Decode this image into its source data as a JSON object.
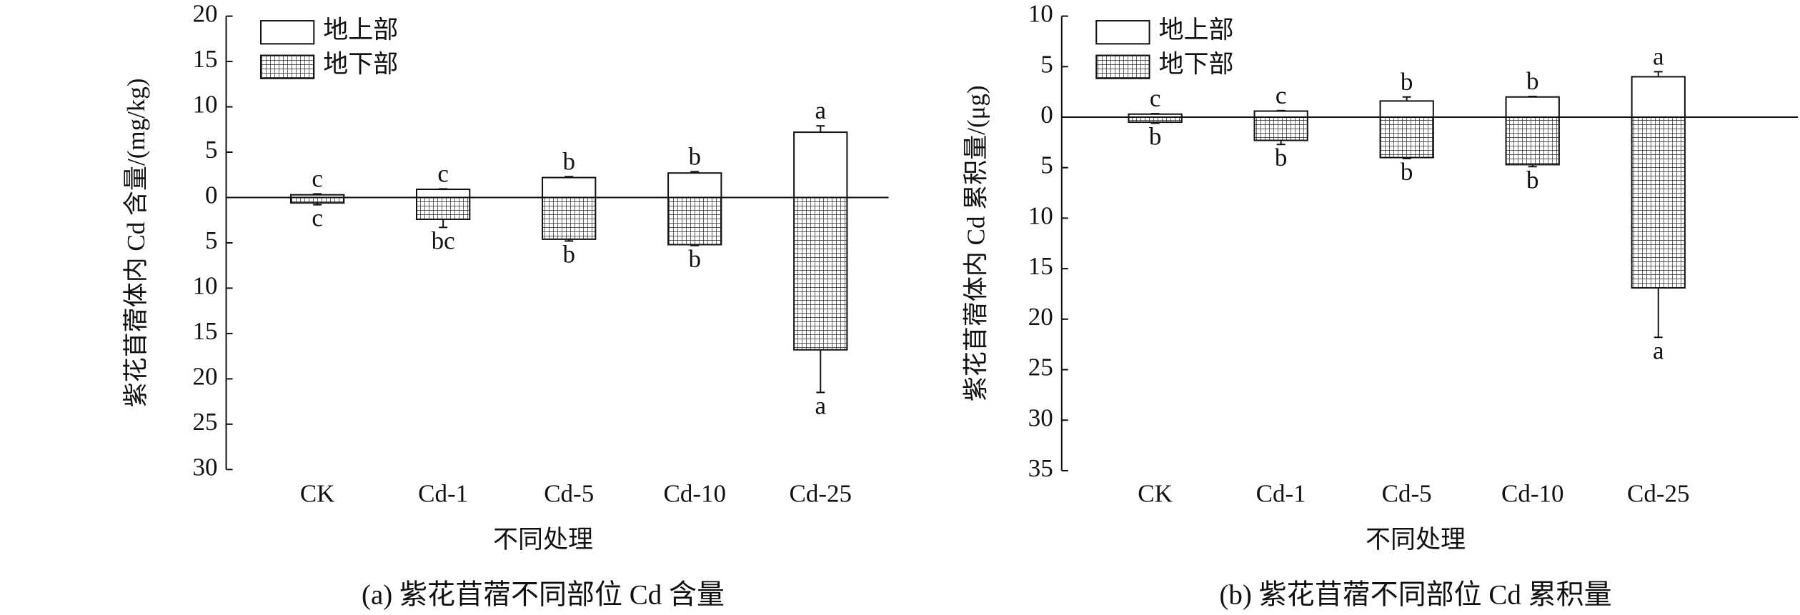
{
  "chart_data": [
    {
      "type": "bar",
      "caption": "(a) 紫花苜蓿不同部位 Cd 含量",
      "ylabel": "紫花苜蓿体内 Cd 含量/(mg/kg)",
      "xlabel": "不同处理",
      "categories": [
        "CK",
        "Cd-1",
        "Cd-5",
        "Cd-10",
        "Cd-25"
      ],
      "ylim": [
        -30,
        20
      ],
      "yticks": [
        20,
        15,
        10,
        5,
        0,
        {
          "value": -5,
          "label": "5"
        },
        {
          "value": -10,
          "label": "10"
        },
        {
          "value": -15,
          "label": "15"
        },
        {
          "value": -20,
          "label": "20"
        },
        {
          "value": -25,
          "label": "25"
        },
        {
          "value": -30,
          "label": "30"
        }
      ],
      "series": [
        {
          "name": "地上部",
          "color": "#ffffff",
          "values": [
            0.3,
            0.9,
            2.2,
            2.7,
            7.2
          ],
          "errors": [
            0.1,
            0.05,
            0.1,
            0.15,
            0.7
          ],
          "letters": [
            "c",
            "c",
            "b",
            "b",
            "a"
          ]
        },
        {
          "name": "地下部",
          "color": "#ffffff",
          "hatch": "grid",
          "values": [
            -0.6,
            -2.4,
            -4.6,
            -5.2,
            -16.8
          ],
          "errors": [
            0.2,
            0.9,
            0.2,
            0.1,
            4.7
          ],
          "letters": [
            "c",
            "bc",
            "b",
            "b",
            "a"
          ]
        }
      ]
    },
    {
      "type": "bar",
      "caption": "(b) 紫花苜蓿不同部位 Cd 累积量",
      "ylabel": "紫花苜蓿体内 Cd 累积量/(μg)",
      "xlabel": "不同处理",
      "categories": [
        "CK",
        "Cd-1",
        "Cd-5",
        "Cd-10",
        "Cd-25"
      ],
      "ylim": [
        -35,
        10
      ],
      "yticks": [
        10,
        5,
        0,
        {
          "value": -5,
          "label": "5"
        },
        {
          "value": -10,
          "label": "10"
        },
        {
          "value": -15,
          "label": "15"
        },
        {
          "value": -20,
          "label": "20"
        },
        {
          "value": -25,
          "label": "25"
        },
        {
          "value": -30,
          "label": "30"
        },
        {
          "value": -35,
          "label": "35"
        }
      ],
      "series": [
        {
          "name": "地上部",
          "color": "#ffffff",
          "values": [
            0.3,
            0.6,
            1.6,
            2.0,
            4.0
          ],
          "errors": [
            0.05,
            0.05,
            0.4,
            0.05,
            0.5
          ],
          "letters": [
            "c",
            "c",
            "b",
            "b",
            "a"
          ]
        },
        {
          "name": "地下部",
          "color": "#ffffff",
          "hatch": "grid",
          "values": [
            -0.5,
            -2.3,
            -4.0,
            -4.7,
            -16.9
          ],
          "errors": [
            0.1,
            0.4,
            0.1,
            0.2,
            4.9
          ],
          "letters": [
            "b",
            "b",
            "b",
            "b",
            "a"
          ]
        }
      ]
    }
  ]
}
